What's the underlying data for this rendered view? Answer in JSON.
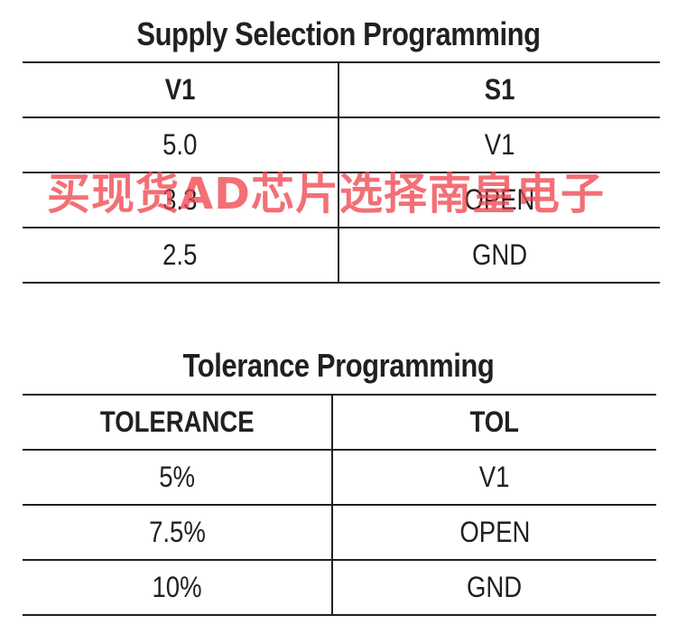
{
  "tables": [
    {
      "title": "Supply Selection Programming",
      "headers": [
        "V1",
        "S1"
      ],
      "rows": [
        [
          "5.0",
          "V1"
        ],
        [
          "3.3",
          "OPEN"
        ],
        [
          "2.5",
          "GND"
        ]
      ]
    },
    {
      "title": "Tolerance Programming",
      "headers": [
        "TOLERANCE",
        "TOL"
      ],
      "rows": [
        [
          "5%",
          "V1"
        ],
        [
          "7.5%",
          "OPEN"
        ],
        [
          "10%",
          "GND"
        ]
      ]
    }
  ],
  "watermark": {
    "text": "买现货AD芯片选择南皇电子",
    "color": "#f04650"
  }
}
